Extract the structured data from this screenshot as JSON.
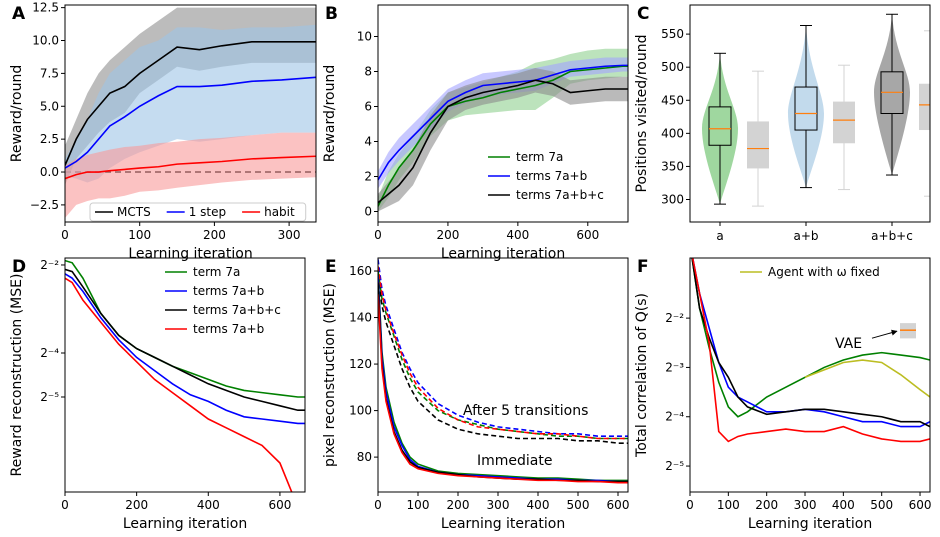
{
  "chart_data": [
    {
      "panel_label": "A",
      "type": "line",
      "xlabel": "Learning iteration",
      "ylabel": "Reward/round",
      "xlim": [
        0,
        336
      ],
      "xticks": [
        0,
        100,
        200,
        300
      ],
      "ylim": [
        -3.8,
        12.7
      ],
      "yticks": [
        {
          "value": -2.5,
          "label": "−2.5"
        },
        {
          "value": 0,
          "label": "0.0"
        },
        2.5,
        {
          "value": 5,
          "label": "5.0"
        },
        7.5,
        {
          "value": 10,
          "label": "10.0"
        },
        12.5
      ],
      "hline": 0,
      "legend": "lower center",
      "x": [
        0,
        15,
        30,
        45,
        60,
        80,
        100,
        125,
        150,
        180,
        210,
        250,
        290,
        336
      ],
      "series": [
        {
          "name": "MCTS",
          "color": "#000000",
          "band_color": "#8f8f8f",
          "values": [
            0.5,
            2.5,
            4,
            5,
            6,
            6.5,
            7.5,
            8.5,
            9.5,
            9.3,
            9.6,
            9.9,
            9.9,
            9.9
          ],
          "lower": [
            -1,
            1,
            2,
            3,
            3.8,
            4.5,
            6,
            7,
            8,
            7.7,
            8,
            8.3,
            8.3,
            8.3
          ],
          "upper": [
            2,
            4,
            6,
            7.5,
            8.5,
            9.5,
            10.5,
            11.5,
            12.5,
            12.5,
            12.5,
            12.5,
            12.5,
            12.5
          ]
        },
        {
          "name": "1 step",
          "color": "#0000ff",
          "band_color": "#9ec5e6",
          "values": [
            0.3,
            0.8,
            1.5,
            2.5,
            3.5,
            4.2,
            5,
            5.8,
            6.5,
            6.5,
            6.6,
            6.9,
            7,
            7.2
          ],
          "lower": [
            -0.3,
            -0.5,
            -0.8,
            -0.5,
            0.3,
            1,
            1.5,
            2,
            2.5,
            2.3,
            2.5,
            2.8,
            3,
            3
          ],
          "upper": [
            1,
            2.5,
            4,
            6,
            7.5,
            8.5,
            9.5,
            10,
            11,
            11,
            10.8,
            11,
            11,
            11.2
          ]
        },
        {
          "name": "habit",
          "color": "#ff0000",
          "band_color": "#f99a9a",
          "values": [
            -0.5,
            -0.2,
            0,
            0,
            0.1,
            0.2,
            0.3,
            0.4,
            0.6,
            0.7,
            0.8,
            1,
            1.1,
            1.2
          ],
          "lower": [
            -3.5,
            -2.5,
            -2.2,
            -2,
            -2,
            -1.8,
            -1.5,
            -1.4,
            -1.2,
            -1,
            -0.8,
            -0.6,
            -0.5,
            -0.4
          ],
          "upper": [
            0.5,
            1,
            1.3,
            1.5,
            1.7,
            1.9,
            2,
            2.2,
            2.3,
            2.5,
            2.6,
            2.8,
            3,
            3
          ]
        }
      ]
    },
    {
      "panel_label": "B",
      "type": "line",
      "xlabel": "Learning iteration",
      "ylabel": "Reward/round",
      "xlim": [
        0,
        715
      ],
      "xticks": [
        0,
        200,
        400,
        600
      ],
      "ylim": [
        -0.6,
        11.8
      ],
      "yticks": [
        0,
        2,
        4,
        6,
        8,
        10
      ],
      "legend": "lower right",
      "x": [
        0,
        30,
        60,
        100,
        150,
        200,
        250,
        300,
        350,
        400,
        450,
        500,
        550,
        600,
        650,
        700,
        715
      ],
      "series": [
        {
          "name": "term 7a",
          "color": "#008000",
          "band_color": "#8fd18f",
          "values": [
            0.3,
            1.5,
            2.5,
            3.5,
            5,
            6,
            6.3,
            6.5,
            6.8,
            7,
            7.2,
            7.5,
            8,
            8.1,
            8.2,
            8.3,
            8.3
          ],
          "lower": [
            0,
            0.8,
            1.8,
            2.8,
            4.3,
            5.2,
            5.5,
            5.6,
            5.7,
            5.8,
            5.8,
            6.5,
            7.3,
            7.5,
            7.6,
            7.7,
            7.7
          ],
          "upper": [
            0.8,
            2.3,
            3.3,
            4.3,
            5.8,
            6.8,
            7.1,
            7.4,
            7.7,
            8,
            8.5,
            8.7,
            9,
            9.2,
            9.3,
            9.3,
            9.3
          ]
        },
        {
          "name": "terms 7a+b",
          "color": "#0000ff",
          "band_color": "#a3a3ff",
          "values": [
            1.8,
            2.8,
            3.5,
            4.3,
            5.3,
            6.3,
            6.8,
            7.2,
            7.3,
            7.4,
            7.5,
            7.8,
            8.1,
            8.2,
            8.3,
            8.35,
            8.35
          ],
          "lower": [
            1.3,
            2.2,
            2.9,
            3.7,
            4.7,
            5.7,
            6.2,
            6.5,
            6.7,
            6.8,
            6.9,
            7.3,
            7.7,
            7.8,
            7.9,
            8,
            8
          ],
          "upper": [
            2.3,
            3.4,
            4.2,
            5,
            6,
            7,
            7.5,
            7.9,
            8,
            8.1,
            8.2,
            8.4,
            8.6,
            8.7,
            8.8,
            8.8,
            8.8
          ]
        },
        {
          "name": "terms 7a+b+c",
          "color": "#000000",
          "band_color": "#8c8c8c",
          "values": [
            0.5,
            1,
            1.5,
            2.5,
            4.5,
            6,
            6.5,
            6.8,
            7,
            7.2,
            7.5,
            7.3,
            6.8,
            6.9,
            7,
            7,
            7
          ],
          "lower": [
            0,
            0.3,
            0.6,
            1.5,
            3.5,
            5.2,
            5.8,
            6.1,
            6.3,
            6.5,
            6.8,
            6.6,
            6.1,
            6.2,
            6.3,
            6.3,
            6.3
          ],
          "upper": [
            1,
            1.7,
            2.4,
            3.5,
            5.5,
            6.8,
            7.2,
            7.5,
            7.7,
            7.9,
            8.2,
            8,
            7.5,
            7.6,
            7.7,
            7.7,
            7.7
          ]
        }
      ]
    },
    {
      "panel_label": "C",
      "type": "violin",
      "ylabel": "Positions visited/round",
      "categories": [
        "a",
        "a+b",
        "a+b+c"
      ],
      "ylim": [
        266,
        594
      ],
      "yticks": [
        300,
        350,
        400,
        450,
        500,
        550
      ],
      "median_color": "#ff7f0e",
      "violin": {
        "colors": [
          "#7fc97f",
          "#aecde6",
          "#8a8a8a"
        ],
        "stats": [
          {
            "min": 293,
            "q1": 382,
            "median": 407,
            "q3": 440,
            "max": 521
          },
          {
            "min": 318,
            "q1": 405,
            "median": 430,
            "q3": 470,
            "max": 563
          },
          {
            "min": 337,
            "q1": 430,
            "median": 462,
            "q3": 493,
            "max": 580
          }
        ]
      },
      "box": {
        "color": "#d3d3d3",
        "stats": [
          {
            "min": 290,
            "q1": 347,
            "median": 377,
            "q3": 418,
            "max": 494
          },
          {
            "min": 315,
            "q1": 385,
            "median": 420,
            "q3": 448,
            "max": 503
          },
          {
            "min": 305,
            "q1": 405,
            "median": 443,
            "q3": 475,
            "max": 555
          }
        ]
      }
    },
    {
      "panel_label": "D",
      "type": "line",
      "xlabel": "Learning iteration",
      "ylabel": "Reward reconstruction (MSE)",
      "log_y": true,
      "xlim": [
        0,
        670
      ],
      "xticks": [
        0,
        200,
        400,
        600
      ],
      "ylim": [
        0.007,
        0.279
      ],
      "yticks": [
        {
          "value": 0.03125,
          "label": "2⁻⁵"
        },
        {
          "value": 0.0625,
          "label": "2⁻⁴"
        },
        {
          "value": 0.25,
          "label": "2⁻²"
        }
      ],
      "legend": "upper right",
      "x": [
        0,
        20,
        50,
        100,
        150,
        200,
        250,
        300,
        350,
        400,
        450,
        500,
        550,
        600,
        650,
        670
      ],
      "series": [
        {
          "name": "term 7a",
          "color": "#008000",
          "values": [
            0.2679,
            0.2588,
            0.2031,
            0.1166,
            0.08246,
            0.06698,
            0.05831,
            0.05076,
            0.04575,
            0.04123,
            0.03716,
            0.03467,
            0.03349,
            0.03235,
            0.03125,
            0.03125
          ]
        },
        {
          "name": "terms 7a+b",
          "color": "#0000ff",
          "values": [
            0.2176,
            0.2031,
            0.1649,
            0.1088,
            0.07694,
            0.05831,
            0.04737,
            0.03848,
            0.03235,
            0.02916,
            0.02538,
            0.02288,
            0.0221,
            0.02134,
            0.02062,
            0.02062
          ]
        },
        {
          "name": "terms 7a+b+c",
          "color": "#000000",
          "values": [
            0.2333,
            0.2253,
            0.1768,
            0.1166,
            0.08246,
            0.06698,
            0.05831,
            0.05076,
            0.04419,
            0.03848,
            0.03467,
            0.03125,
            0.02916,
            0.0272,
            0.02538,
            0.02538
          ]
        },
        {
          "name": "terms 7a+b",
          "color": "#ff0000",
          "values": [
            0.2031,
            0.1895,
            0.1436,
            0.1015,
            0.07179,
            0.05441,
            0.04123,
            0.03349,
            0.0272,
            0.0221,
            0.01924,
            0.01675,
            0.01458,
            0.01105,
            0.005524,
            null
          ]
        }
      ]
    },
    {
      "panel_label": "E",
      "type": "line",
      "xlabel": "Learning iteration",
      "ylabel": "pixel reconstruction (MSE)",
      "xlim": [
        0,
        625
      ],
      "xticks": [
        0,
        100,
        200,
        300,
        400,
        500,
        600
      ],
      "ylim": [
        65,
        165.6
      ],
      "yticks": [
        80,
        100,
        120,
        140,
        160
      ],
      "annotations": [
        "After 5 transitions",
        "Immediate"
      ],
      "x": [
        0,
        10,
        20,
        40,
        60,
        80,
        100,
        150,
        200,
        250,
        300,
        350,
        400,
        450,
        500,
        550,
        600,
        625
      ],
      "series": [
        {
          "color": "#008000",
          "dashed": true,
          "values": [
            160,
            148,
            142,
            132,
            122,
            114,
            108,
            100,
            96,
            94,
            92,
            91,
            90,
            89,
            89,
            88,
            88,
            88
          ]
        },
        {
          "color": "#0000ff",
          "dashed": true,
          "values": [
            165,
            152,
            145,
            135,
            125,
            118,
            112,
            103,
            98,
            95,
            93,
            92,
            91,
            90,
            90,
            89,
            89,
            89
          ]
        },
        {
          "color": "#000000",
          "dashed": true,
          "values": [
            158,
            145,
            138,
            128,
            118,
            110,
            104,
            96,
            92,
            90,
            89,
            88,
            88,
            88,
            87,
            87,
            86,
            86
          ]
        },
        {
          "color": "#ff0000",
          "dashed": true,
          "values": [
            162,
            150,
            143,
            133,
            124,
            116,
            110,
            101,
            96,
            93,
            92,
            91,
            90,
            90,
            89,
            88,
            88,
            88
          ]
        },
        {
          "color": "#008000",
          "values": [
            160,
            125,
            110,
            95,
            86,
            80,
            77,
            74,
            73,
            72.5,
            72,
            71.5,
            71,
            71,
            70.5,
            70,
            70,
            70
          ]
        },
        {
          "color": "#0000ff",
          "values": [
            158,
            123,
            108,
            93,
            85,
            79,
            76,
            73.5,
            72.5,
            72,
            71.5,
            71,
            70.5,
            70.5,
            70,
            70,
            69.5,
            69.5
          ]
        },
        {
          "color": "#000000",
          "values": [
            155,
            120,
            105,
            91,
            83,
            78,
            75.5,
            73.5,
            72.5,
            71.5,
            71,
            70.5,
            70.5,
            70,
            70,
            69.5,
            69.5,
            69.5
          ]
        },
        {
          "color": "#ff0000",
          "values": [
            150,
            118,
            104,
            90,
            82,
            77,
            75,
            73,
            72,
            71.5,
            71,
            70.5,
            70,
            70,
            69.5,
            69.5,
            69,
            69
          ]
        }
      ]
    },
    {
      "panel_label": "F",
      "type": "line",
      "xlabel": "Learning iteration",
      "ylabel": "Total correlation of Q(s)",
      "log_y": true,
      "xlim": [
        0,
        626
      ],
      "xticks": [
        0,
        100,
        200,
        300,
        400,
        500,
        600
      ],
      "ylim": [
        0.0217,
        0.582
      ],
      "yticks": [
        {
          "value": 0.03125,
          "label": "2⁻⁵"
        },
        {
          "value": 0.0625,
          "label": "2⁻⁴"
        },
        {
          "value": 0.125,
          "label": "2⁻³"
        },
        {
          "value": 0.25,
          "label": "2⁻²"
        }
      ],
      "legend": "upper center",
      "annotation": "VAE",
      "vae_box": {
        "low": 0.188,
        "median": 0.211,
        "high": 0.233
      },
      "x": [
        0,
        25,
        50,
        75,
        100,
        125,
        150,
        200,
        250,
        300,
        350,
        400,
        450,
        500,
        550,
        600,
        626
      ],
      "series": [
        {
          "color": "#008000",
          "values": [
            0.7071,
            0.2872,
            0.1649,
            0.1015,
            0.07179,
            0.0625,
            0.06698,
            0.08246,
            0.09473,
            0.1088,
            0.125,
            0.1387,
            0.1487,
            0.1539,
            0.1487,
            0.1436,
            0.1387
          ]
        },
        {
          "color": "#0000ff",
          "values": [
            0.7071,
            0.3536,
            0.2176,
            0.134,
            0.09473,
            0.08246,
            0.07694,
            0.06698,
            0.06698,
            0.06934,
            0.06698,
            0.0625,
            0.05831,
            0.05831,
            0.05441,
            0.05441,
            0.05831
          ]
        },
        {
          "color": "#000000",
          "values": [
            0.7071,
            0.2872,
            0.1895,
            0.134,
            0.1088,
            0.08246,
            0.07179,
            0.0647,
            0.06698,
            0.06934,
            0.06934,
            0.06698,
            0.0647,
            0.0625,
            0.05831,
            0.05831,
            0.05441
          ]
        },
        {
          "color": "#ff0000",
          "values": [
            0.7071,
            0.3536,
            0.1768,
            0.05076,
            0.04419,
            0.04737,
            0.04904,
            0.05076,
            0.05256,
            0.05076,
            0.05076,
            0.05441,
            0.04904,
            0.04575,
            0.04419,
            0.04419,
            0.04575
          ]
        },
        {
          "name": "Agent with ω fixed",
          "color": "#bcbd22",
          "values": [
            null,
            null,
            null,
            null,
            null,
            null,
            null,
            null,
            null,
            0.1088,
            0.1207,
            0.134,
            0.1387,
            0.134,
            0.1127,
            0.0915,
            0.08246
          ]
        }
      ]
    }
  ]
}
